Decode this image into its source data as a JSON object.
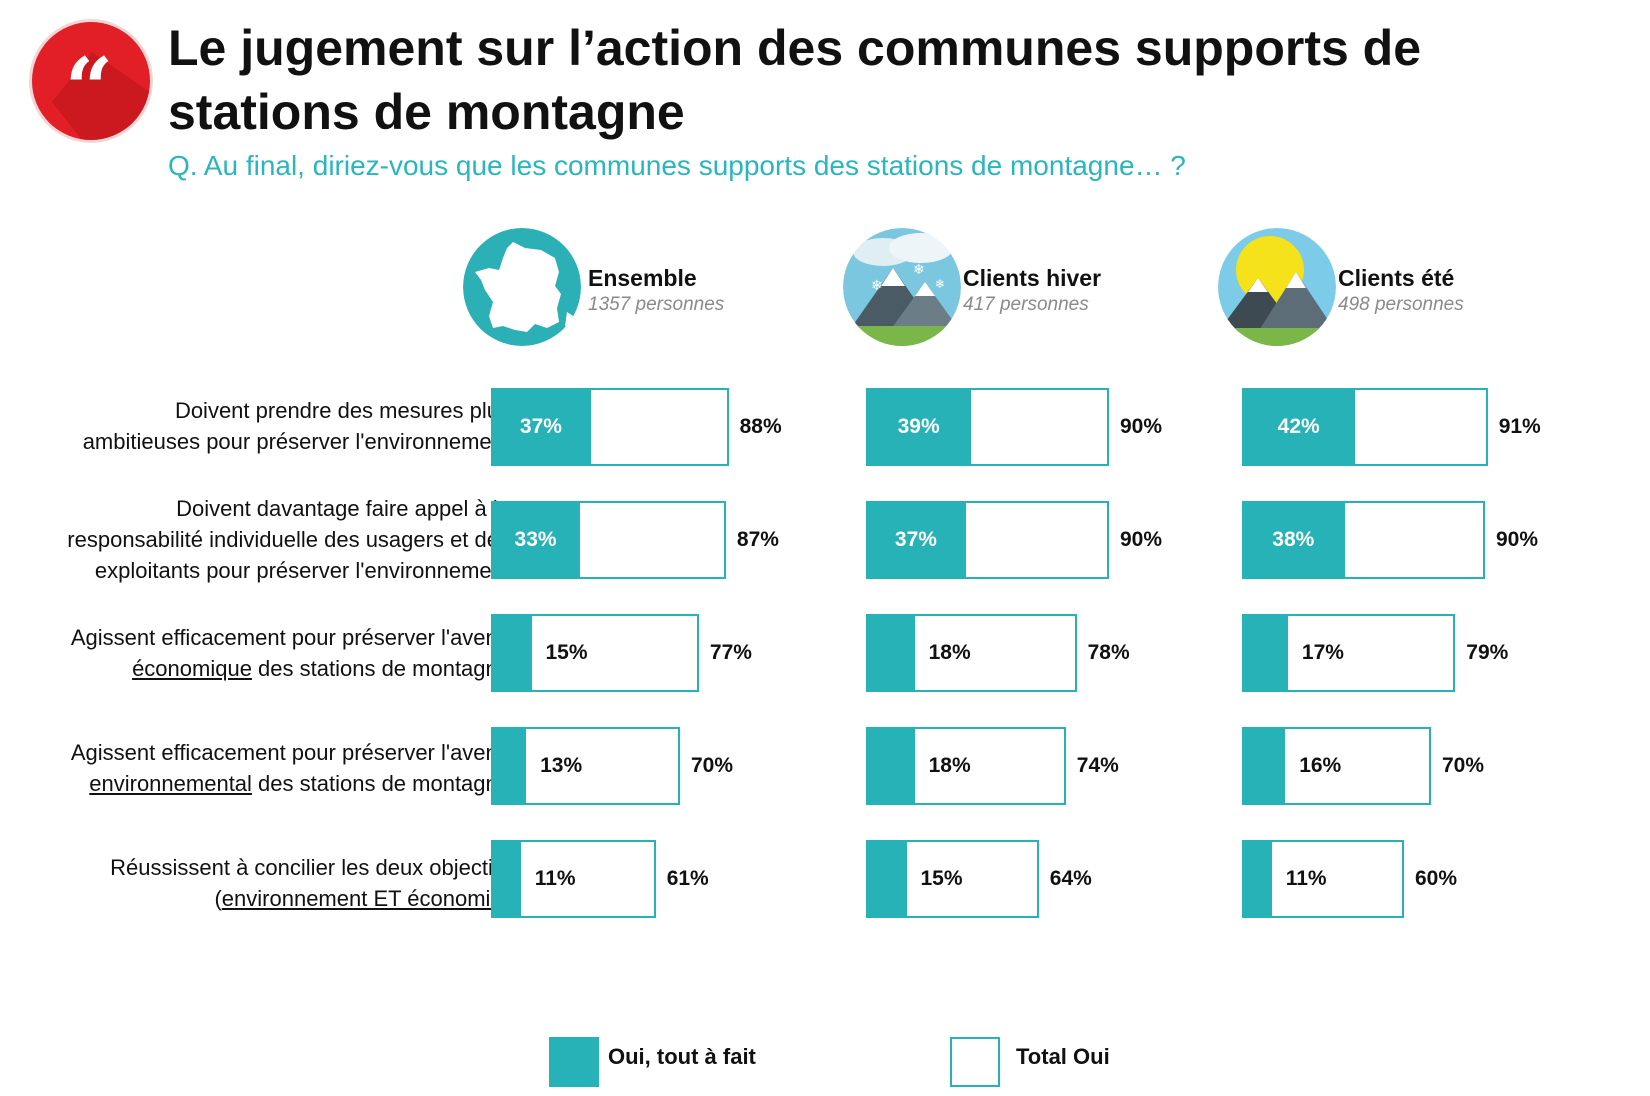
{
  "header": {
    "title": "Le jugement sur l’action des communes supports de stations de montagne",
    "question": "Q. Au final, diriez-vous que les communes supports des stations de montagne… ?"
  },
  "colors": {
    "accent": "#27b2b8",
    "badge": "#e21f26"
  },
  "segments": [
    {
      "name": "Ensemble",
      "count": "1357 personnes",
      "icon": "france-map-icon"
    },
    {
      "name": "Clients hiver",
      "count": "417 personnes",
      "icon": "snowy-mountain-icon"
    },
    {
      "name": "Clients été",
      "count": "498 personnes",
      "icon": "sunny-mountain-icon"
    }
  ],
  "rows": [
    {
      "label_lines": [
        "Doivent prendre des mesures plus",
        "ambitieuses pour préserver l'environnement"
      ]
    },
    {
      "label_lines": [
        "Doivent davantage faire appel à la",
        "responsabilité individuelle des usagers et des",
        "exploitants pour préserver l'environnement"
      ]
    },
    {
      "label_lines": [
        "Agissent efficacement pour préserver l'avenir",
        "économique des stations de montagne"
      ],
      "underlined": "économique"
    },
    {
      "label_lines": [
        "Agissent efficacement pour préserver l'avenir",
        "environnemental des stations de montagne"
      ],
      "underlined": "environnemental"
    },
    {
      "label_lines": [
        "Réussissent à concilier les deux objectifs",
        "(environnement ET économie)"
      ],
      "underlined": "environnement ET économie"
    }
  ],
  "legend": {
    "oui_tout_a_fait": "Oui, tout à fait",
    "total_oui": "Total Oui"
  },
  "chart_data": {
    "type": "bar",
    "orientation": "horizontal",
    "unit": "%",
    "categories": [
      "Doivent prendre des mesures plus ambitieuses pour préserver l'environnement",
      "Doivent davantage faire appel à la responsabilité individuelle des usagers et des exploitants pour préserver l'environnement",
      "Agissent efficacement pour préserver l'avenir économique des stations de montagne",
      "Agissent efficacement pour préserver l'avenir environnemental des stations de montagne",
      "Réussissent à concilier les deux objectifs (environnement ET économie)"
    ],
    "panels": [
      {
        "name": "Ensemble",
        "series": [
          {
            "name": "Oui, tout à fait",
            "values": [
              37,
              33,
              15,
              13,
              11
            ]
          },
          {
            "name": "Total Oui",
            "values": [
              88,
              87,
              77,
              70,
              61
            ]
          }
        ]
      },
      {
        "name": "Clients hiver",
        "series": [
          {
            "name": "Oui, tout à fait",
            "values": [
              39,
              37,
              18,
              18,
              15
            ]
          },
          {
            "name": "Total Oui",
            "values": [
              90,
              90,
              78,
              74,
              64
            ]
          }
        ]
      },
      {
        "name": "Clients été",
        "series": [
          {
            "name": "Oui, tout à fait",
            "values": [
              42,
              38,
              17,
              16,
              11
            ]
          },
          {
            "name": "Total Oui",
            "values": [
              91,
              90,
              79,
              70,
              60
            ]
          }
        ]
      }
    ],
    "legend_position": "bottom",
    "grid": false
  }
}
